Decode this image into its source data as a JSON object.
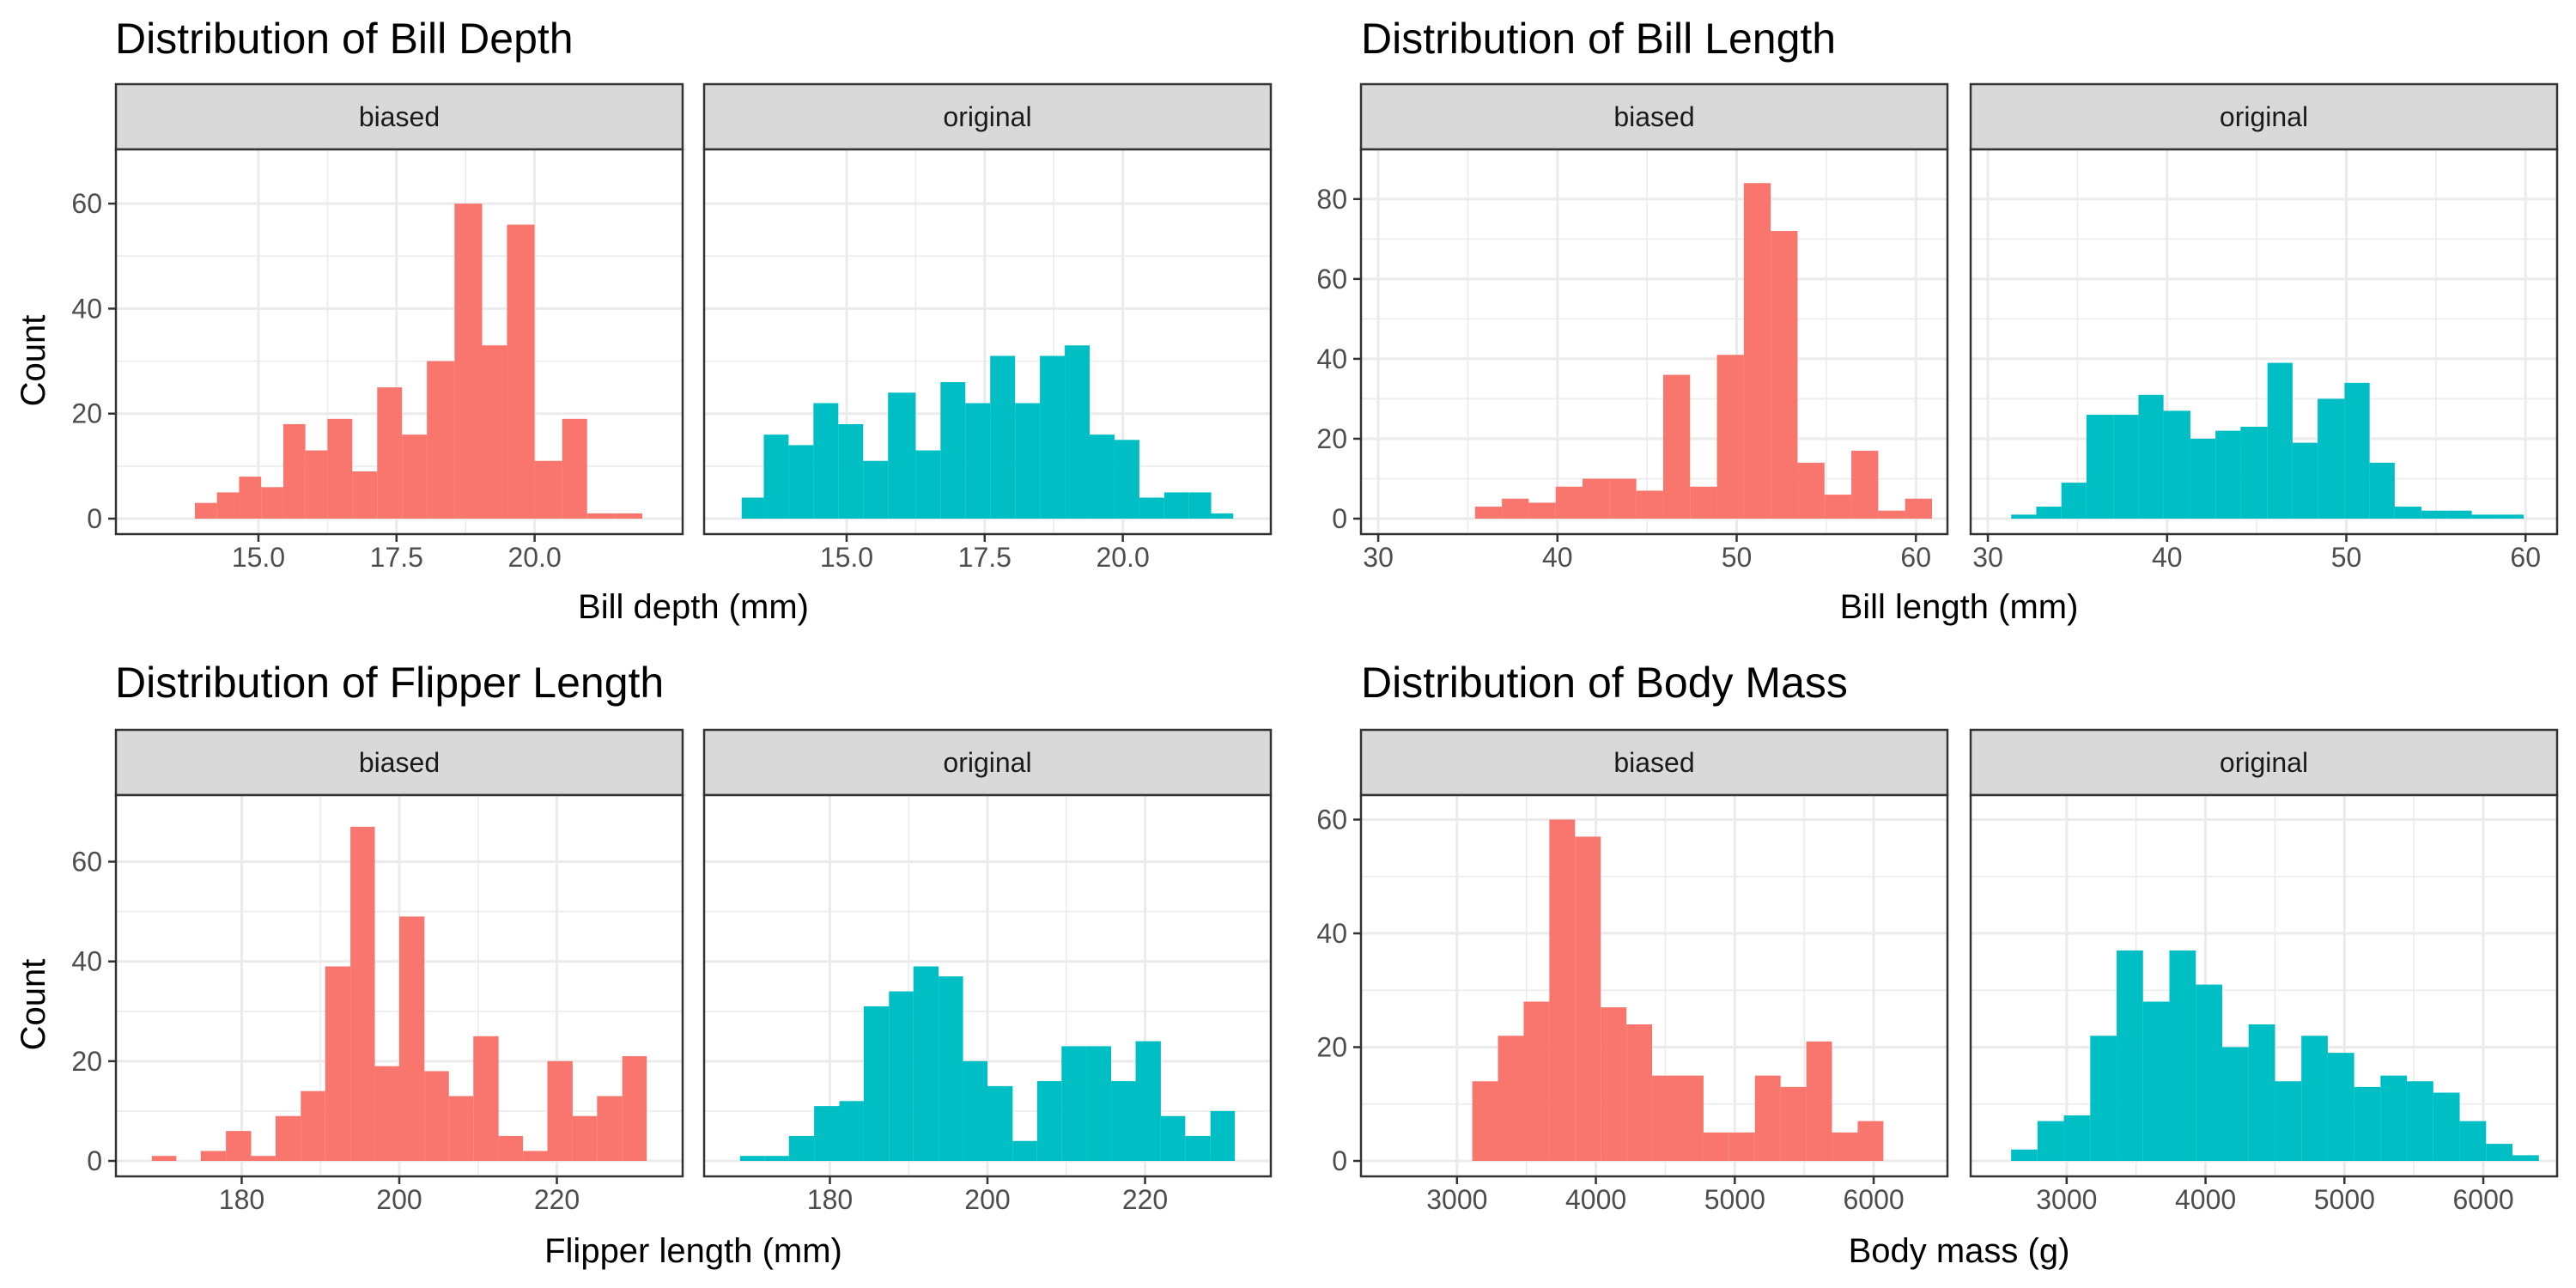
{
  "colors": {
    "biased": "#F8766D",
    "original": "#00BFC4",
    "strip_fill": "#D9D9D9",
    "grid": "#EBEBEB",
    "border": "#333333"
  },
  "ylabel": "Count",
  "chart_data": [
    {
      "type": "bar",
      "title": "Distribution of Bill Depth",
      "xlabel": "Bill depth (mm)",
      "ylabel": "Count",
      "xlim": [
        12.7,
        22.4
      ],
      "ylim": [
        0,
        70
      ],
      "xticks": [
        15,
        17.5,
        20
      ],
      "xtick_labels": [
        "15.0",
        "17.5",
        "20.0"
      ],
      "yticks": [
        0,
        20,
        40,
        60
      ],
      "grid": true,
      "facets": [
        {
          "name": "biased",
          "bins": [
            {
              "x0": 13.85,
              "x1": 14.25,
              "count": 3
            },
            {
              "x0": 14.25,
              "x1": 14.65,
              "count": 5
            },
            {
              "x0": 14.65,
              "x1": 15.05,
              "count": 8
            },
            {
              "x0": 15.05,
              "x1": 15.45,
              "count": 6
            },
            {
              "x0": 15.45,
              "x1": 15.85,
              "count": 18
            },
            {
              "x0": 15.85,
              "x1": 16.25,
              "count": 13
            },
            {
              "x0": 16.25,
              "x1": 16.7,
              "count": 19
            },
            {
              "x0": 16.7,
              "x1": 17.15,
              "count": 9
            },
            {
              "x0": 17.15,
              "x1": 17.6,
              "count": 25
            },
            {
              "x0": 17.6,
              "x1": 18.05,
              "count": 16
            },
            {
              "x0": 18.05,
              "x1": 18.55,
              "count": 30
            },
            {
              "x0": 18.55,
              "x1": 19.05,
              "count": 60
            },
            {
              "x0": 19.05,
              "x1": 19.5,
              "count": 33
            },
            {
              "x0": 19.5,
              "x1": 20.0,
              "count": 56
            },
            {
              "x0": 20.0,
              "x1": 20.5,
              "count": 11
            },
            {
              "x0": 20.5,
              "x1": 20.95,
              "count": 19
            },
            {
              "x0": 20.95,
              "x1": 21.45,
              "count": 1
            },
            {
              "x0": 21.45,
              "x1": 21.95,
              "count": 1
            }
          ]
        },
        {
          "name": "original",
          "bins": [
            {
              "x0": 13.1,
              "x1": 13.5,
              "count": 4
            },
            {
              "x0": 13.5,
              "x1": 13.95,
              "count": 16
            },
            {
              "x0": 13.95,
              "x1": 14.4,
              "count": 14
            },
            {
              "x0": 14.4,
              "x1": 14.85,
              "count": 22
            },
            {
              "x0": 14.85,
              "x1": 15.3,
              "count": 18
            },
            {
              "x0": 15.3,
              "x1": 15.75,
              "count": 11
            },
            {
              "x0": 15.75,
              "x1": 16.25,
              "count": 24
            },
            {
              "x0": 16.25,
              "x1": 16.7,
              "count": 13
            },
            {
              "x0": 16.7,
              "x1": 17.15,
              "count": 26
            },
            {
              "x0": 17.15,
              "x1": 17.6,
              "count": 22
            },
            {
              "x0": 17.6,
              "x1": 18.05,
              "count": 31
            },
            {
              "x0": 18.05,
              "x1": 18.5,
              "count": 22
            },
            {
              "x0": 18.5,
              "x1": 18.95,
              "count": 31
            },
            {
              "x0": 18.95,
              "x1": 19.4,
              "count": 33
            },
            {
              "x0": 19.4,
              "x1": 19.85,
              "count": 16
            },
            {
              "x0": 19.85,
              "x1": 20.3,
              "count": 15
            },
            {
              "x0": 20.3,
              "x1": 20.75,
              "count": 4
            },
            {
              "x0": 20.75,
              "x1": 21.2,
              "count": 5
            },
            {
              "x0": 21.2,
              "x1": 21.6,
              "count": 5
            },
            {
              "x0": 21.6,
              "x1": 22.0,
              "count": 1
            }
          ]
        }
      ]
    },
    {
      "type": "bar",
      "title": "Distribution of Bill Length",
      "xlabel": "Bill length (mm)",
      "ylabel": "",
      "xlim": [
        29.9,
        60.9
      ],
      "ylim": [
        0,
        92
      ],
      "xticks": [
        30,
        40,
        50,
        60
      ],
      "xtick_labels": [
        "30",
        "40",
        "50",
        "60"
      ],
      "yticks": [
        0,
        20,
        40,
        60,
        80
      ],
      "grid": true,
      "facets": [
        {
          "name": "biased",
          "bins": [
            {
              "x0": 35.4,
              "x1": 36.9,
              "count": 3
            },
            {
              "x0": 36.9,
              "x1": 38.4,
              "count": 5
            },
            {
              "x0": 38.4,
              "x1": 39.9,
              "count": 4
            },
            {
              "x0": 39.9,
              "x1": 41.4,
              "count": 8
            },
            {
              "x0": 41.4,
              "x1": 42.9,
              "count": 10
            },
            {
              "x0": 42.9,
              "x1": 44.4,
              "count": 10
            },
            {
              "x0": 44.4,
              "x1": 45.9,
              "count": 7
            },
            {
              "x0": 45.9,
              "x1": 47.4,
              "count": 36
            },
            {
              "x0": 47.4,
              "x1": 48.9,
              "count": 8
            },
            {
              "x0": 48.9,
              "x1": 50.4,
              "count": 41
            },
            {
              "x0": 50.4,
              "x1": 51.9,
              "count": 84
            },
            {
              "x0": 51.9,
              "x1": 53.4,
              "count": 72
            },
            {
              "x0": 53.4,
              "x1": 54.9,
              "count": 14
            },
            {
              "x0": 54.9,
              "x1": 56.4,
              "count": 6
            },
            {
              "x0": 56.4,
              "x1": 57.9,
              "count": 17
            },
            {
              "x0": 57.9,
              "x1": 59.4,
              "count": 2
            },
            {
              "x0": 59.4,
              "x1": 60.9,
              "count": 5
            }
          ]
        },
        {
          "name": "original",
          "bins": [
            {
              "x0": 31.3,
              "x1": 32.7,
              "count": 1
            },
            {
              "x0": 32.7,
              "x1": 34.1,
              "count": 3
            },
            {
              "x0": 34.1,
              "x1": 35.5,
              "count": 9
            },
            {
              "x0": 35.5,
              "x1": 37.0,
              "count": 26
            },
            {
              "x0": 37.0,
              "x1": 38.4,
              "count": 26
            },
            {
              "x0": 38.4,
              "x1": 39.8,
              "count": 31
            },
            {
              "x0": 39.8,
              "x1": 41.3,
              "count": 27
            },
            {
              "x0": 41.3,
              "x1": 42.7,
              "count": 20
            },
            {
              "x0": 42.7,
              "x1": 44.1,
              "count": 22
            },
            {
              "x0": 44.1,
              "x1": 45.6,
              "count": 23
            },
            {
              "x0": 45.6,
              "x1": 47.0,
              "count": 39
            },
            {
              "x0": 47.0,
              "x1": 48.4,
              "count": 19
            },
            {
              "x0": 48.4,
              "x1": 49.9,
              "count": 30
            },
            {
              "x0": 49.9,
              "x1": 51.3,
              "count": 34
            },
            {
              "x0": 51.3,
              "x1": 52.7,
              "count": 14
            },
            {
              "x0": 52.7,
              "x1": 54.2,
              "count": 3
            },
            {
              "x0": 54.2,
              "x1": 55.6,
              "count": 2
            },
            {
              "x0": 55.6,
              "x1": 57.0,
              "count": 2
            },
            {
              "x0": 57.0,
              "x1": 58.5,
              "count": 1
            },
            {
              "x0": 58.5,
              "x1": 59.9,
              "count": 1
            }
          ]
        }
      ]
    },
    {
      "type": "bar",
      "title": "Distribution of Flipper Length",
      "xlabel": "Flipper length (mm)",
      "ylabel": "Count",
      "xlim": [
        166,
        234
      ],
      "ylim": [
        0,
        73
      ],
      "xticks": [
        180,
        200,
        220
      ],
      "xtick_labels": [
        "180",
        "200",
        "220"
      ],
      "yticks": [
        0,
        20,
        40,
        60
      ],
      "grid": true,
      "facets": [
        {
          "name": "biased",
          "bins": [
            {
              "x0": 168.6,
              "x1": 171.7,
              "count": 1
            },
            {
              "x0": 171.7,
              "x1": 174.8,
              "count": 0
            },
            {
              "x0": 174.8,
              "x1": 178.0,
              "count": 2
            },
            {
              "x0": 178.0,
              "x1": 181.2,
              "count": 6
            },
            {
              "x0": 181.2,
              "x1": 184.3,
              "count": 1
            },
            {
              "x0": 184.3,
              "x1": 187.5,
              "count": 9
            },
            {
              "x0": 187.5,
              "x1": 190.6,
              "count": 14
            },
            {
              "x0": 190.6,
              "x1": 193.8,
              "count": 39
            },
            {
              "x0": 193.8,
              "x1": 196.9,
              "count": 67
            },
            {
              "x0": 196.9,
              "x1": 200.0,
              "count": 19
            },
            {
              "x0": 200.0,
              "x1": 203.2,
              "count": 49
            },
            {
              "x0": 203.2,
              "x1": 206.3,
              "count": 18
            },
            {
              "x0": 206.3,
              "x1": 209.4,
              "count": 13
            },
            {
              "x0": 209.4,
              "x1": 212.6,
              "count": 25
            },
            {
              "x0": 212.6,
              "x1": 215.7,
              "count": 5
            },
            {
              "x0": 215.7,
              "x1": 218.8,
              "count": 2
            },
            {
              "x0": 218.8,
              "x1": 222.0,
              "count": 20
            },
            {
              "x0": 222.0,
              "x1": 225.1,
              "count": 9
            },
            {
              "x0": 225.1,
              "x1": 228.3,
              "count": 13
            },
            {
              "x0": 228.3,
              "x1": 231.4,
              "count": 21
            }
          ]
        },
        {
          "name": "original",
          "bins": [
            {
              "x0": 168.6,
              "x1": 171.7,
              "count": 1
            },
            {
              "x0": 171.7,
              "x1": 174.8,
              "count": 1
            },
            {
              "x0": 174.8,
              "x1": 178.0,
              "count": 5
            },
            {
              "x0": 178.0,
              "x1": 181.2,
              "count": 11
            },
            {
              "x0": 181.2,
              "x1": 184.3,
              "count": 12
            },
            {
              "x0": 184.3,
              "x1": 187.5,
              "count": 31
            },
            {
              "x0": 187.5,
              "x1": 190.6,
              "count": 34
            },
            {
              "x0": 190.6,
              "x1": 193.8,
              "count": 39
            },
            {
              "x0": 193.8,
              "x1": 196.9,
              "count": 37
            },
            {
              "x0": 196.9,
              "x1": 200.0,
              "count": 20
            },
            {
              "x0": 200.0,
              "x1": 203.2,
              "count": 15
            },
            {
              "x0": 203.2,
              "x1": 206.3,
              "count": 4
            },
            {
              "x0": 206.3,
              "x1": 209.4,
              "count": 16
            },
            {
              "x0": 209.4,
              "x1": 212.6,
              "count": 23
            },
            {
              "x0": 212.6,
              "x1": 215.7,
              "count": 23
            },
            {
              "x0": 215.7,
              "x1": 218.8,
              "count": 16
            },
            {
              "x0": 218.8,
              "x1": 222.0,
              "count": 24
            },
            {
              "x0": 222.0,
              "x1": 225.1,
              "count": 9
            },
            {
              "x0": 225.1,
              "x1": 228.3,
              "count": 5
            },
            {
              "x0": 228.3,
              "x1": 231.4,
              "count": 10
            }
          ]
        }
      ]
    },
    {
      "type": "bar",
      "title": "Distribution of Body Mass",
      "xlabel": "Body mass (g)",
      "ylabel": "",
      "xlim": [
        2420,
        6420
      ],
      "ylim": [
        0,
        64
      ],
      "xticks": [
        3000,
        4000,
        5000,
        6000
      ],
      "xtick_labels": [
        "3000",
        "4000",
        "5000",
        "6000"
      ],
      "yticks": [
        0,
        20,
        40,
        60
      ],
      "grid": true,
      "facets": [
        {
          "name": "biased",
          "bins": [
            {
              "x0": 3110,
              "x1": 3295,
              "count": 14
            },
            {
              "x0": 3295,
              "x1": 3480,
              "count": 22
            },
            {
              "x0": 3480,
              "x1": 3665,
              "count": 28
            },
            {
              "x0": 3665,
              "x1": 3850,
              "count": 60
            },
            {
              "x0": 3850,
              "x1": 4035,
              "count": 57
            },
            {
              "x0": 4035,
              "x1": 4220,
              "count": 27
            },
            {
              "x0": 4220,
              "x1": 4405,
              "count": 24
            },
            {
              "x0": 4405,
              "x1": 4590,
              "count": 15
            },
            {
              "x0": 4590,
              "x1": 4775,
              "count": 15
            },
            {
              "x0": 4775,
              "x1": 4960,
              "count": 5
            },
            {
              "x0": 4960,
              "x1": 5145,
              "count": 5
            },
            {
              "x0": 5145,
              "x1": 5330,
              "count": 15
            },
            {
              "x0": 5330,
              "x1": 5515,
              "count": 13
            },
            {
              "x0": 5515,
              "x1": 5700,
              "count": 21
            },
            {
              "x0": 5700,
              "x1": 5885,
              "count": 5
            },
            {
              "x0": 5885,
              "x1": 6070,
              "count": 7
            }
          ]
        },
        {
          "name": "original",
          "bins": [
            {
              "x0": 2600,
              "x1": 2790,
              "count": 2
            },
            {
              "x0": 2790,
              "x1": 2980,
              "count": 7
            },
            {
              "x0": 2980,
              "x1": 3170,
              "count": 8
            },
            {
              "x0": 3170,
              "x1": 3360,
              "count": 22
            },
            {
              "x0": 3360,
              "x1": 3550,
              "count": 37
            },
            {
              "x0": 3550,
              "x1": 3740,
              "count": 28
            },
            {
              "x0": 3740,
              "x1": 3930,
              "count": 37
            },
            {
              "x0": 3930,
              "x1": 4120,
              "count": 31
            },
            {
              "x0": 4120,
              "x1": 4310,
              "count": 20
            },
            {
              "x0": 4310,
              "x1": 4500,
              "count": 24
            },
            {
              "x0": 4500,
              "x1": 4690,
              "count": 14
            },
            {
              "x0": 4690,
              "x1": 4880,
              "count": 22
            },
            {
              "x0": 4880,
              "x1": 5070,
              "count": 19
            },
            {
              "x0": 5070,
              "x1": 5260,
              "count": 13
            },
            {
              "x0": 5260,
              "x1": 5450,
              "count": 15
            },
            {
              "x0": 5450,
              "x1": 5640,
              "count": 14
            },
            {
              "x0": 5640,
              "x1": 5830,
              "count": 12
            },
            {
              "x0": 5830,
              "x1": 6020,
              "count": 7
            },
            {
              "x0": 6020,
              "x1": 6210,
              "count": 3
            },
            {
              "x0": 6210,
              "x1": 6400,
              "count": 1
            }
          ]
        }
      ]
    }
  ]
}
